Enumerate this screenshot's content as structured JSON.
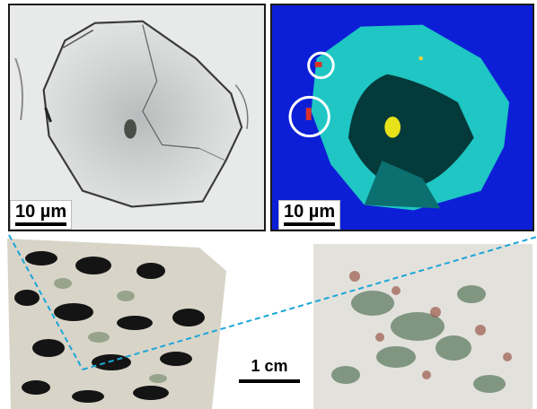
{
  "figure": {
    "panels": [
      {
        "id": "bright-field",
        "scale_label": "10 µm"
      },
      {
        "id": "fluorescence",
        "scale_label": "10 µm"
      },
      {
        "id": "sample-pair",
        "scale_label": "1 cm"
      }
    ],
    "colors": {
      "fluor_background": "#0d1fd6",
      "fluor_crystal": "#1fc6c4",
      "fluor_inclusion": "#e8e21a",
      "fluor_marker": "#d9322a",
      "callout_line": "#1aa6d8"
    }
  }
}
